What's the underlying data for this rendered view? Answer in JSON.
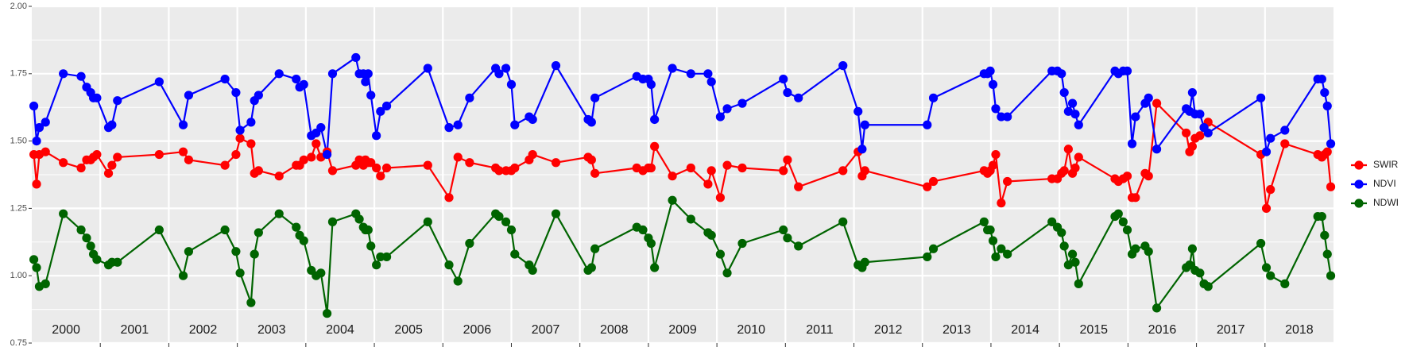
{
  "chart_data": {
    "type": "line",
    "x": [
      2000.03,
      2000.07,
      2000.11,
      2000.2,
      2000.46,
      2000.72,
      2000.8,
      2000.86,
      2000.9,
      2000.95,
      2001.12,
      2001.17,
      2001.25,
      2001.86,
      2002.21,
      2002.29,
      2002.82,
      2002.98,
      2003.04,
      2003.2,
      2003.25,
      2003.31,
      2003.61,
      2003.86,
      2003.91,
      2003.97,
      2004.08,
      2004.15,
      2004.22,
      2004.31,
      2004.39,
      2004.73,
      2004.78,
      2004.84,
      2004.87,
      2004.91,
      2004.95,
      2005.03,
      2005.09,
      2005.18,
      2005.78,
      2006.09,
      2006.22,
      2006.39,
      2006.77,
      2006.82,
      2006.92,
      2007.0,
      2007.05,
      2007.26,
      2007.31,
      2007.65,
      2008.12,
      2008.17,
      2008.22,
      2008.83,
      2008.92,
      2009.0,
      2009.04,
      2009.09,
      2009.35,
      2009.62,
      2009.87,
      2009.92,
      2010.05,
      2010.15,
      2010.37,
      2010.97,
      2011.03,
      2011.19,
      2011.84,
      2012.06,
      2012.12,
      2012.16,
      2013.07,
      2013.16,
      2013.9,
      2013.95,
      2013.99,
      2014.03,
      2014.07,
      2014.15,
      2014.24,
      2014.89,
      2014.97,
      2015.03,
      2015.07,
      2015.13,
      2015.19,
      2015.23,
      2015.28,
      2015.81,
      2015.86,
      2015.93,
      2015.99,
      2016.06,
      2016.11,
      2016.25,
      2016.3,
      2016.42,
      2016.85,
      2016.9,
      2016.94,
      2016.98,
      2017.05,
      2017.11,
      2017.17,
      2017.94,
      2018.02,
      2018.08,
      2018.29,
      2018.77,
      2018.83,
      2018.87,
      2018.91,
      2018.96
    ],
    "series": [
      {
        "name": "SWIR",
        "color": "#ff0000",
        "values": [
          1.45,
          1.34,
          1.45,
          1.46,
          1.42,
          1.4,
          1.43,
          1.43,
          1.44,
          1.45,
          1.38,
          1.41,
          1.44,
          1.45,
          1.46,
          1.43,
          1.41,
          1.45,
          1.51,
          1.49,
          1.38,
          1.39,
          1.37,
          1.41,
          1.41,
          1.43,
          1.44,
          1.49,
          1.44,
          1.46,
          1.39,
          1.41,
          1.43,
          1.41,
          1.43,
          1.42,
          1.42,
          1.4,
          1.37,
          1.4,
          1.41,
          1.29,
          1.44,
          1.42,
          1.4,
          1.39,
          1.39,
          1.39,
          1.4,
          1.43,
          1.45,
          1.42,
          1.44,
          1.43,
          1.38,
          1.4,
          1.39,
          1.4,
          1.4,
          1.48,
          1.37,
          1.4,
          1.34,
          1.39,
          1.29,
          1.41,
          1.4,
          1.39,
          1.43,
          1.33,
          1.39,
          1.46,
          1.37,
          1.39,
          1.33,
          1.35,
          1.39,
          1.38,
          1.39,
          1.41,
          1.45,
          1.27,
          1.35,
          1.36,
          1.36,
          1.38,
          1.39,
          1.47,
          1.38,
          1.4,
          1.44,
          1.36,
          1.35,
          1.36,
          1.37,
          1.29,
          1.29,
          1.38,
          1.37,
          1.64,
          1.53,
          1.46,
          1.48,
          1.51,
          1.52,
          1.55,
          1.57,
          1.45,
          1.25,
          1.32,
          1.49,
          1.45,
          1.44,
          1.45,
          1.46,
          1.33
        ]
      },
      {
        "name": "NDVI",
        "color": "#0000ff",
        "values": [
          1.63,
          1.5,
          1.55,
          1.57,
          1.75,
          1.74,
          1.7,
          1.68,
          1.66,
          1.66,
          1.55,
          1.56,
          1.65,
          1.72,
          1.56,
          1.67,
          1.73,
          1.68,
          1.54,
          1.57,
          1.65,
          1.67,
          1.75,
          1.73,
          1.7,
          1.71,
          1.52,
          1.53,
          1.55,
          1.45,
          1.75,
          1.81,
          1.75,
          1.75,
          1.72,
          1.75,
          1.67,
          1.52,
          1.61,
          1.63,
          1.77,
          1.55,
          1.56,
          1.66,
          1.77,
          1.75,
          1.77,
          1.71,
          1.56,
          1.59,
          1.58,
          1.78,
          1.58,
          1.57,
          1.66,
          1.74,
          1.73,
          1.73,
          1.71,
          1.58,
          1.77,
          1.75,
          1.75,
          1.72,
          1.59,
          1.62,
          1.64,
          1.73,
          1.68,
          1.66,
          1.78,
          1.61,
          1.47,
          1.56,
          1.56,
          1.66,
          1.75,
          1.75,
          1.76,
          1.71,
          1.62,
          1.59,
          1.59,
          1.76,
          1.76,
          1.75,
          1.68,
          1.61,
          1.64,
          1.6,
          1.56,
          1.76,
          1.75,
          1.76,
          1.76,
          1.49,
          1.59,
          1.64,
          1.66,
          1.47,
          1.62,
          1.61,
          1.68,
          1.6,
          1.6,
          1.55,
          1.53,
          1.66,
          1.46,
          1.51,
          1.54,
          1.73,
          1.73,
          1.68,
          1.63,
          1.49
        ]
      },
      {
        "name": "NDWI",
        "color": "#006400",
        "values": [
          1.06,
          1.03,
          0.96,
          0.97,
          1.23,
          1.17,
          1.14,
          1.11,
          1.08,
          1.06,
          1.04,
          1.05,
          1.05,
          1.17,
          1.0,
          1.09,
          1.17,
          1.09,
          1.01,
          0.9,
          1.08,
          1.16,
          1.23,
          1.18,
          1.15,
          1.13,
          1.02,
          1.0,
          1.01,
          0.86,
          1.2,
          1.23,
          1.21,
          1.18,
          1.17,
          1.17,
          1.11,
          1.04,
          1.07,
          1.07,
          1.2,
          1.04,
          0.98,
          1.12,
          1.23,
          1.22,
          1.2,
          1.17,
          1.08,
          1.04,
          1.02,
          1.23,
          1.02,
          1.03,
          1.1,
          1.18,
          1.17,
          1.14,
          1.12,
          1.03,
          1.28,
          1.21,
          1.16,
          1.15,
          1.08,
          1.01,
          1.12,
          1.17,
          1.14,
          1.11,
          1.2,
          1.04,
          1.03,
          1.05,
          1.07,
          1.1,
          1.2,
          1.17,
          1.17,
          1.13,
          1.07,
          1.1,
          1.08,
          1.2,
          1.18,
          1.16,
          1.11,
          1.04,
          1.08,
          1.05,
          0.97,
          1.22,
          1.23,
          1.2,
          1.17,
          1.08,
          1.1,
          1.11,
          1.09,
          0.88,
          1.03,
          1.04,
          1.1,
          1.02,
          1.01,
          0.97,
          0.96,
          1.12,
          1.03,
          1.0,
          0.97,
          1.22,
          1.22,
          1.15,
          1.08,
          1.0
        ]
      }
    ],
    "xlim": [
      2000,
      2019
    ],
    "xticks": [
      {
        "value": 2000.5,
        "label": "2000"
      },
      {
        "value": 2001.5,
        "label": "2001"
      },
      {
        "value": 2002.5,
        "label": "2002"
      },
      {
        "value": 2003.5,
        "label": "2003"
      },
      {
        "value": 2004.5,
        "label": "2004"
      },
      {
        "value": 2005.5,
        "label": "2005"
      },
      {
        "value": 2006.5,
        "label": "2006"
      },
      {
        "value": 2007.5,
        "label": "2007"
      },
      {
        "value": 2008.5,
        "label": "2008"
      },
      {
        "value": 2009.5,
        "label": "2009"
      },
      {
        "value": 2010.5,
        "label": "2010"
      },
      {
        "value": 2011.5,
        "label": "2011"
      },
      {
        "value": 2012.5,
        "label": "2012"
      },
      {
        "value": 2013.5,
        "label": "2013"
      },
      {
        "value": 2014.5,
        "label": "2014"
      },
      {
        "value": 2015.5,
        "label": "2015"
      },
      {
        "value": 2016.5,
        "label": "2016"
      },
      {
        "value": 2017.5,
        "label": "2017"
      },
      {
        "value": 2018.5,
        "label": "2018"
      }
    ],
    "xgrid": [
      2001,
      2002,
      2003,
      2004,
      2005,
      2006,
      2007,
      2008,
      2009,
      2010,
      2011,
      2012,
      2013,
      2014,
      2015,
      2016,
      2017,
      2018
    ],
    "ylim": [
      0.75,
      2.0
    ],
    "yticks": [
      {
        "value": 0.75,
        "label": "0.75"
      },
      {
        "value": 1.0,
        "label": "1.00"
      },
      {
        "value": 1.25,
        "label": "1.25"
      },
      {
        "value": 1.5,
        "label": "1.50"
      },
      {
        "value": 1.75,
        "label": "1.75"
      },
      {
        "value": 2.0,
        "label": "2.00"
      }
    ],
    "yminor": [
      0.875,
      1.125,
      1.375,
      1.625,
      1.875
    ],
    "grid": true,
    "legend": "right"
  }
}
